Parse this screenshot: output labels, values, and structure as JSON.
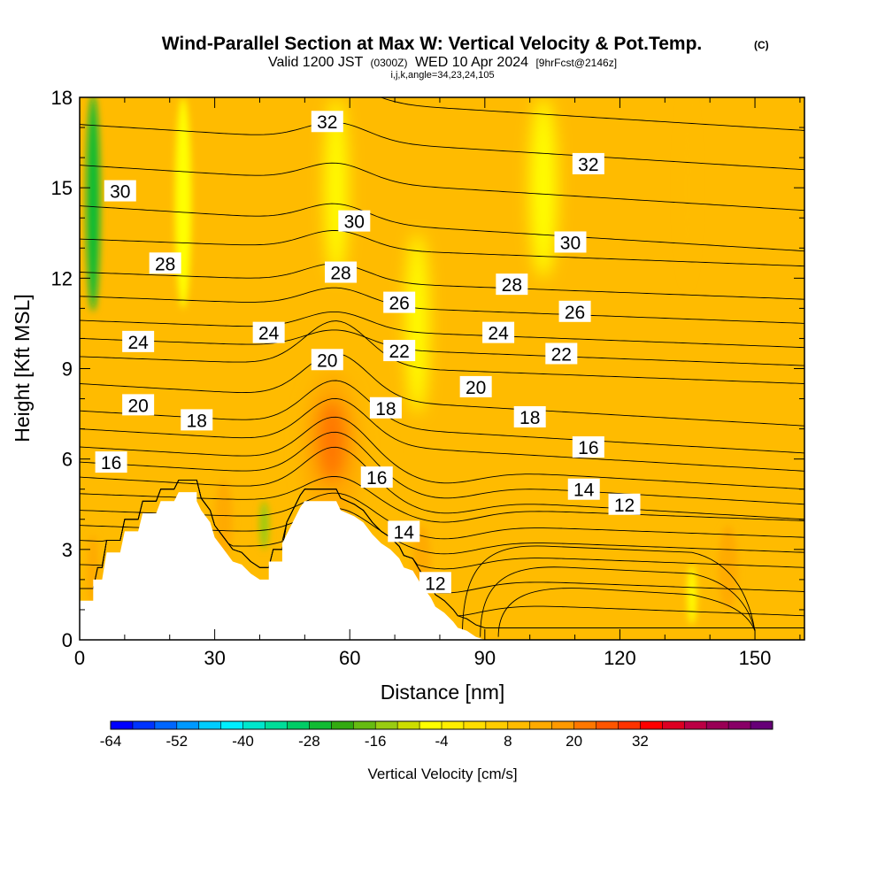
{
  "chart_data": {
    "type": "heatmap",
    "title": "Wind-Parallel Section at Max W: Vertical Velocity & Pot.Temp.",
    "title_mark": "(C)",
    "subtitle_parts": [
      "Valid 1200 JST",
      "(0300Z)",
      "WED 10 Apr 2024",
      "[9hrFcst@2146z]"
    ],
    "subtitle2": "i,j,k,angle=34,23,24,105",
    "xlabel": "Distance [nm]",
    "ylabel": "Height [Kft MSL]",
    "xlim": [
      0,
      161
    ],
    "ylim": [
      0,
      18
    ],
    "x_ticks": [
      "0",
      "30",
      "60",
      "90",
      "120",
      "150"
    ],
    "x_tick_values": [
      0,
      30,
      60,
      90,
      120,
      150
    ],
    "y_ticks": [
      "0",
      "3",
      "6",
      "9",
      "12",
      "15",
      "18"
    ],
    "y_tick_values": [
      0,
      3,
      6,
      9,
      12,
      15,
      18
    ],
    "colorbar": {
      "title": "Vertical Velocity [cm/s]",
      "labels": [
        "-64",
        "-52",
        "-40",
        "-28",
        "-16",
        "-4",
        "8",
        "20",
        "32"
      ],
      "label_values": [
        -64,
        -52,
        -40,
        -28,
        -16,
        -4,
        8,
        20,
        32
      ],
      "min": -64,
      "step": 4,
      "colors": [
        "#0000ff",
        "#0033ff",
        "#0066ff",
        "#0099ff",
        "#00ccff",
        "#00eeff",
        "#00e6cc",
        "#00dd99",
        "#00cc66",
        "#11bb33",
        "#33aa11",
        "#66bb11",
        "#99cc11",
        "#ccdd00",
        "#ffff00",
        "#ffee00",
        "#ffdd00",
        "#ffcc00",
        "#ffbb00",
        "#ffaa00",
        "#ff9900",
        "#ff7700",
        "#ff5500",
        "#ff3300",
        "#ff0000",
        "#dd0022",
        "#bb0044",
        "#990055",
        "#880066",
        "#660077"
      ]
    },
    "background_level": "0 to 4 cm/s",
    "terrain": [
      [
        0,
        1.3
      ],
      [
        1,
        1.3
      ],
      [
        3,
        1.3
      ],
      [
        3,
        2.0
      ],
      [
        5,
        2.0
      ],
      [
        6,
        2.9
      ],
      [
        9,
        2.9
      ],
      [
        10,
        3.6
      ],
      [
        13,
        3.6
      ],
      [
        14,
        4.2
      ],
      [
        17,
        4.2
      ],
      [
        18,
        4.6
      ],
      [
        21,
        4.6
      ],
      [
        22,
        4.9
      ],
      [
        26,
        4.9
      ],
      [
        26,
        4.6
      ],
      [
        27,
        4.3
      ],
      [
        29,
        3.9
      ],
      [
        30,
        3.4
      ],
      [
        32,
        3.0
      ],
      [
        34,
        2.6
      ],
      [
        36,
        2.5
      ],
      [
        38,
        2.2
      ],
      [
        40,
        2.0
      ],
      [
        42,
        2.0
      ],
      [
        42,
        2.6
      ],
      [
        45,
        2.6
      ],
      [
        45,
        3.2
      ],
      [
        47,
        3.8
      ],
      [
        49,
        4.4
      ],
      [
        50,
        4.6
      ],
      [
        57,
        4.6
      ],
      [
        58,
        4.3
      ],
      [
        61,
        4.1
      ],
      [
        63,
        3.9
      ],
      [
        65,
        3.5
      ],
      [
        67,
        3.2
      ],
      [
        69,
        3.0
      ],
      [
        71,
        2.7
      ],
      [
        72,
        2.4
      ],
      [
        74,
        2.3
      ],
      [
        76,
        1.8
      ],
      [
        78,
        1.4
      ],
      [
        79,
        1.1
      ],
      [
        81,
        0.9
      ],
      [
        83,
        0.6
      ],
      [
        84,
        0.4
      ],
      [
        86,
        0.3
      ],
      [
        88,
        0.1
      ],
      [
        90,
        0
      ]
    ],
    "updraft_cores": [
      {
        "x": 56,
        "y": 6.3,
        "rx": 6.5,
        "ry": 2.6,
        "w": 14
      },
      {
        "x": 56,
        "y": 6.6,
        "rx": 3.5,
        "ry": 1.4,
        "w": 21
      },
      {
        "x": 32,
        "y": 4.0,
        "rx": 2.0,
        "ry": 1.3,
        "w": 15
      },
      {
        "x": 144,
        "y": 2.4,
        "rx": 2.2,
        "ry": 1.4,
        "w": 15
      },
      {
        "x": 135,
        "y": 15.0,
        "rx": 2.0,
        "ry": 3.2,
        "w": 10
      },
      {
        "x": 3,
        "y": 2.3,
        "rx": 1.3,
        "ry": 1.2,
        "w": 14
      },
      {
        "x": 76,
        "y": 2.6,
        "rx": 2.0,
        "ry": 1.2,
        "w": 14
      },
      {
        "x": 69,
        "y": 5.2,
        "rx": 1.5,
        "ry": 1.5,
        "w": 11
      }
    ],
    "downdraft_streaks": [
      {
        "x": 3,
        "y": 14.5,
        "rx": 1.5,
        "ry": 3.6,
        "w": -26
      },
      {
        "x": 3,
        "y": 15.0,
        "rx": 1.0,
        "ry": 2.5,
        "w": -28
      },
      {
        "x": 41,
        "y": 3.8,
        "rx": 1.0,
        "ry": 0.8,
        "w": -15
      },
      {
        "x": 57,
        "y": 15.0,
        "rx": 2.5,
        "ry": 3.0,
        "w": -6
      },
      {
        "x": 23,
        "y": 14.5,
        "rx": 1.8,
        "ry": 3.5,
        "w": -6
      },
      {
        "x": 103,
        "y": 15.0,
        "rx": 3.0,
        "ry": 3.0,
        "w": -6
      },
      {
        "x": 75,
        "y": 10.5,
        "rx": 2.5,
        "ry": 3.0,
        "w": -5
      },
      {
        "x": 136,
        "y": 1.5,
        "rx": 1.0,
        "ry": 1.0,
        "w": -8
      }
    ],
    "theta_levels": [
      10,
      11,
      12,
      13,
      14,
      15,
      16,
      17,
      18,
      19,
      20,
      21,
      22,
      23,
      24,
      25,
      26,
      27,
      28,
      29,
      30,
      31,
      32,
      33,
      34
    ],
    "theta_far_left_height": {
      "14": 3.3,
      "16": 4.3,
      "18": 5.4,
      "20": 6.4,
      "22": 7.6,
      "24": 9.4,
      "26": 10.6,
      "28": 12.2,
      "30": 14.4,
      "32": 17.1
    },
    "theta_labels": [
      {
        "text": "32",
        "x": 55,
        "y": 17.2
      },
      {
        "text": "32",
        "x": 113,
        "y": 15.8
      },
      {
        "text": "30",
        "x": 9,
        "y": 14.9
      },
      {
        "text": "30",
        "x": 61,
        "y": 13.9
      },
      {
        "text": "30",
        "x": 109,
        "y": 13.2
      },
      {
        "text": "28",
        "x": 19,
        "y": 12.5
      },
      {
        "text": "28",
        "x": 58,
        "y": 12.2
      },
      {
        "text": "28",
        "x": 96,
        "y": 11.8
      },
      {
        "text": "26",
        "x": 71,
        "y": 11.2
      },
      {
        "text": "26",
        "x": 110,
        "y": 10.9
      },
      {
        "text": "24",
        "x": 13,
        "y": 9.9
      },
      {
        "text": "24",
        "x": 42,
        "y": 10.2
      },
      {
        "text": "24",
        "x": 93,
        "y": 10.2
      },
      {
        "text": "22",
        "x": 71,
        "y": 9.6
      },
      {
        "text": "22",
        "x": 107,
        "y": 9.5
      },
      {
        "text": "20",
        "x": 55,
        "y": 9.3
      },
      {
        "text": "20",
        "x": 88,
        "y": 8.4
      },
      {
        "text": "20",
        "x": 13,
        "y": 7.8
      },
      {
        "text": "18",
        "x": 26,
        "y": 7.3
      },
      {
        "text": "18",
        "x": 68,
        "y": 7.7
      },
      {
        "text": "18",
        "x": 100,
        "y": 7.4
      },
      {
        "text": "16",
        "x": 7,
        "y": 5.9
      },
      {
        "text": "16",
        "x": 66,
        "y": 5.4
      },
      {
        "text": "16",
        "x": 113,
        "y": 6.4
      },
      {
        "text": "14",
        "x": 72,
        "y": 3.6
      },
      {
        "text": "14",
        "x": 112,
        "y": 5.0
      },
      {
        "text": "12",
        "x": 79,
        "y": 1.9
      },
      {
        "text": "12",
        "x": 121,
        "y": 4.5
      }
    ],
    "low_level_contours": [
      "12",
      "11",
      "10"
    ],
    "grid": false,
    "legend": "bottom colorbar"
  }
}
